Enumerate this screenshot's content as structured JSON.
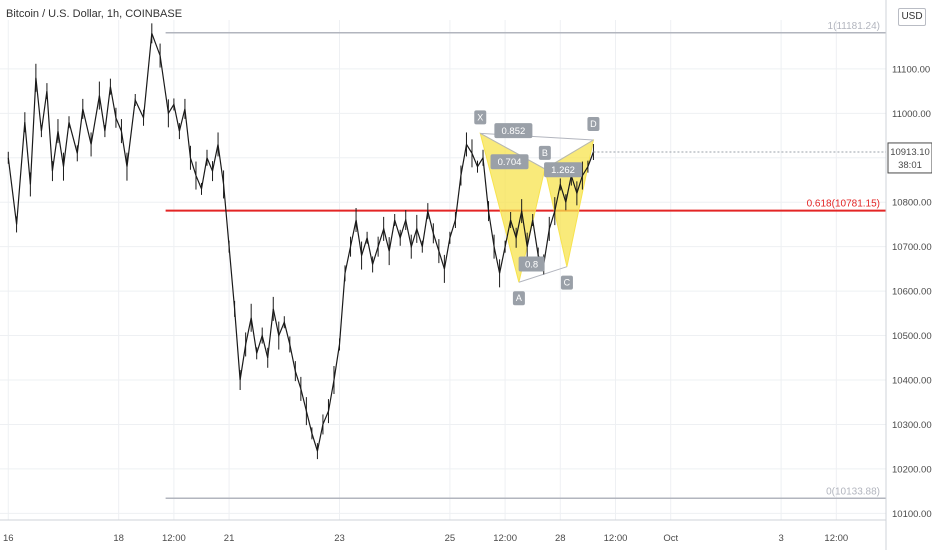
{
  "header": {
    "title": "Bitcoin / U.S. Dollar, 1h, COINBASE",
    "currency": "USD"
  },
  "chart_data": {
    "type": "candlestick",
    "title": "Bitcoin / U.S. Dollar, 1h, COINBASE",
    "y_axis": {
      "ticks": [
        "11100.00",
        "11000.00",
        "10900.00",
        "10800.00",
        "10700.00",
        "10600.00",
        "10500.00",
        "10400.00",
        "10300.00",
        "10200.00",
        "10100.00"
      ],
      "tick_values": [
        11100,
        11000,
        10900,
        10800,
        10700,
        10600,
        10500,
        10400,
        10300,
        10200,
        10100
      ],
      "range": [
        10080,
        11200
      ]
    },
    "x_axis": {
      "labels": [
        {
          "text": "16",
          "t": 0
        },
        {
          "text": "18",
          "t": 2
        },
        {
          "text": "12:00",
          "t": 3
        },
        {
          "text": "21",
          "t": 4
        },
        {
          "text": "23",
          "t": 6
        },
        {
          "text": "25",
          "t": 8
        },
        {
          "text": "12:00",
          "t": 9
        },
        {
          "text": "28",
          "t": 10
        },
        {
          "text": "12:00",
          "t": 11
        },
        {
          "text": "Oct",
          "t": 12
        },
        {
          "text": "3",
          "t": 14
        },
        {
          "text": "12:00",
          "t": 15
        }
      ]
    },
    "price_series": [
      [
        0.0,
        10900
      ],
      [
        0.15,
        10750
      ],
      [
        0.3,
        10980
      ],
      [
        0.4,
        10840
      ],
      [
        0.5,
        11080
      ],
      [
        0.6,
        10960
      ],
      [
        0.7,
        11050
      ],
      [
        0.8,
        10870
      ],
      [
        0.9,
        10960
      ],
      [
        1.0,
        10880
      ],
      [
        1.1,
        10980
      ],
      [
        1.25,
        10910
      ],
      [
        1.35,
        11010
      ],
      [
        1.5,
        10930
      ],
      [
        1.65,
        11040
      ],
      [
        1.75,
        10960
      ],
      [
        1.85,
        11060
      ],
      [
        1.95,
        10990
      ],
      [
        2.05,
        10960
      ],
      [
        2.15,
        10880
      ],
      [
        2.3,
        11030
      ],
      [
        2.45,
        10990
      ],
      [
        2.6,
        11180
      ],
      [
        2.75,
        11130
      ],
      [
        2.9,
        11000
      ],
      [
        3.0,
        11020
      ],
      [
        3.1,
        10960
      ],
      [
        3.2,
        11010
      ],
      [
        3.3,
        10900
      ],
      [
        3.4,
        10860
      ],
      [
        3.5,
        10830
      ],
      [
        3.6,
        10900
      ],
      [
        3.7,
        10870
      ],
      [
        3.8,
        10930
      ],
      [
        3.9,
        10840
      ],
      [
        4.0,
        10700
      ],
      [
        4.1,
        10560
      ],
      [
        4.2,
        10400
      ],
      [
        4.3,
        10480
      ],
      [
        4.4,
        10540
      ],
      [
        4.5,
        10460
      ],
      [
        4.6,
        10500
      ],
      [
        4.7,
        10450
      ],
      [
        4.8,
        10560
      ],
      [
        4.9,
        10500
      ],
      [
        5.0,
        10530
      ],
      [
        5.1,
        10480
      ],
      [
        5.2,
        10420
      ],
      [
        5.3,
        10380
      ],
      [
        5.4,
        10330
      ],
      [
        5.5,
        10280
      ],
      [
        5.6,
        10240
      ],
      [
        5.7,
        10300
      ],
      [
        5.8,
        10330
      ],
      [
        5.9,
        10400
      ],
      [
        6.0,
        10480
      ],
      [
        6.1,
        10640
      ],
      [
        6.2,
        10700
      ],
      [
        6.3,
        10760
      ],
      [
        6.4,
        10680
      ],
      [
        6.5,
        10720
      ],
      [
        6.6,
        10660
      ],
      [
        6.7,
        10700
      ],
      [
        6.8,
        10740
      ],
      [
        6.9,
        10690
      ],
      [
        7.0,
        10760
      ],
      [
        7.1,
        10720
      ],
      [
        7.2,
        10760
      ],
      [
        7.3,
        10700
      ],
      [
        7.4,
        10740
      ],
      [
        7.5,
        10700
      ],
      [
        7.6,
        10780
      ],
      [
        7.7,
        10730
      ],
      [
        7.8,
        10690
      ],
      [
        7.9,
        10650
      ],
      [
        8.0,
        10720
      ],
      [
        8.1,
        10760
      ],
      [
        8.2,
        10860
      ],
      [
        8.3,
        10930
      ],
      [
        8.4,
        10910
      ],
      [
        8.5,
        10880
      ],
      [
        8.6,
        10900
      ],
      [
        8.7,
        10780
      ],
      [
        8.8,
        10700
      ],
      [
        8.9,
        10640
      ],
      [
        9.0,
        10700
      ],
      [
        9.1,
        10760
      ],
      [
        9.2,
        10720
      ],
      [
        9.3,
        10780
      ],
      [
        9.4,
        10700
      ],
      [
        9.5,
        10760
      ],
      [
        9.6,
        10680
      ],
      [
        9.7,
        10660
      ],
      [
        9.8,
        10740
      ],
      [
        9.9,
        10780
      ],
      [
        10.0,
        10840
      ],
      [
        10.1,
        10800
      ],
      [
        10.2,
        10860
      ],
      [
        10.3,
        10820
      ],
      [
        10.4,
        10860
      ],
      [
        10.5,
        10880
      ],
      [
        10.6,
        10913
      ]
    ],
    "series_style": {
      "color": "#1a1a1a"
    },
    "horizontal_lines": [
      {
        "label": "0.618(10781.15)",
        "value": 10781.15,
        "color": "#e32525"
      },
      {
        "label": "1(11181.24)",
        "value": 11181.24,
        "color": "#b2b5be"
      },
      {
        "label": "0(10133.88)",
        "value": 10133.88,
        "color": "#b2b5be"
      }
    ],
    "current_price": {
      "value": 10913.1,
      "label": "10913.10",
      "countdown": "38:01"
    },
    "pattern": {
      "fill": "#f7e34e",
      "points": [
        {
          "label": "X",
          "t": 8.55,
          "v": 10955
        },
        {
          "label": "A",
          "t": 9.25,
          "v": 10620
        },
        {
          "label": "B",
          "t": 9.72,
          "v": 10875
        },
        {
          "label": "C",
          "t": 10.12,
          "v": 10655
        },
        {
          "label": "D",
          "t": 10.6,
          "v": 10940
        }
      ],
      "ratios": [
        {
          "text": "0.852",
          "t": 9.15,
          "v": 10960
        },
        {
          "text": "0.704",
          "t": 9.08,
          "v": 10890
        },
        {
          "text": "0.8",
          "t": 9.48,
          "v": 10660
        },
        {
          "text": "1.262",
          "t": 10.05,
          "v": 10872
        }
      ]
    }
  }
}
